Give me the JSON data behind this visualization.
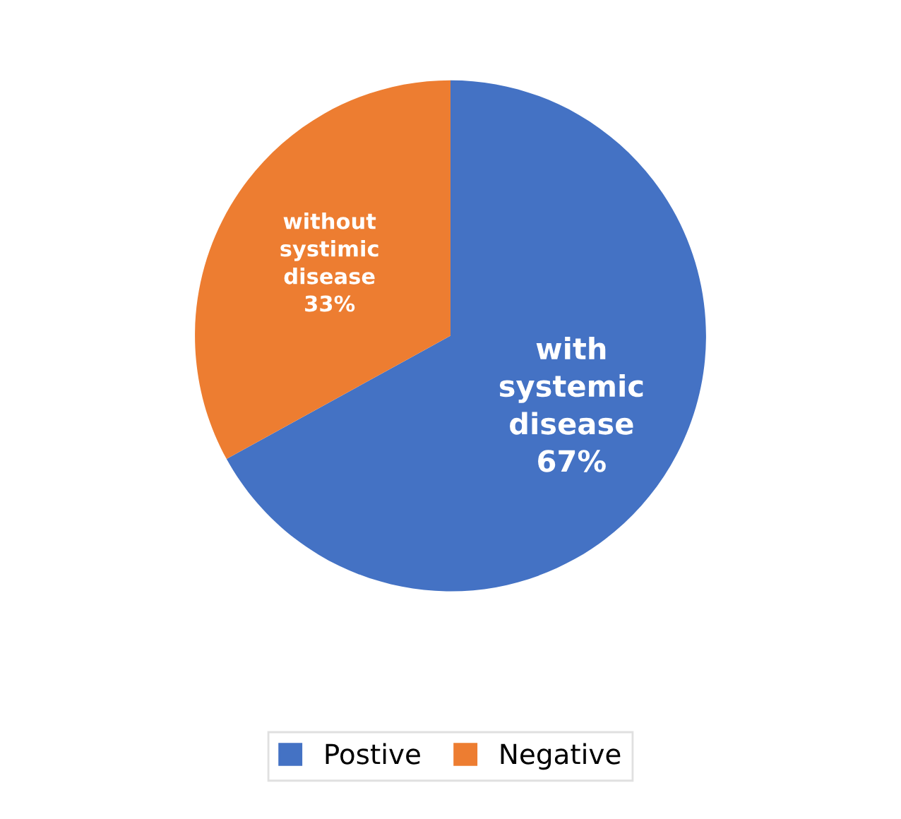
{
  "chart_data": {
    "type": "pie",
    "categories": [
      "Postive",
      "Negative"
    ],
    "values": [
      67,
      33
    ],
    "colors": [
      "#4472c4",
      "#ed7d31"
    ],
    "value_labels": [
      "with\nsystemic\ndisease\n67%",
      "without\nsystimic\ndisease\n33%"
    ],
    "legend": "bottom"
  }
}
